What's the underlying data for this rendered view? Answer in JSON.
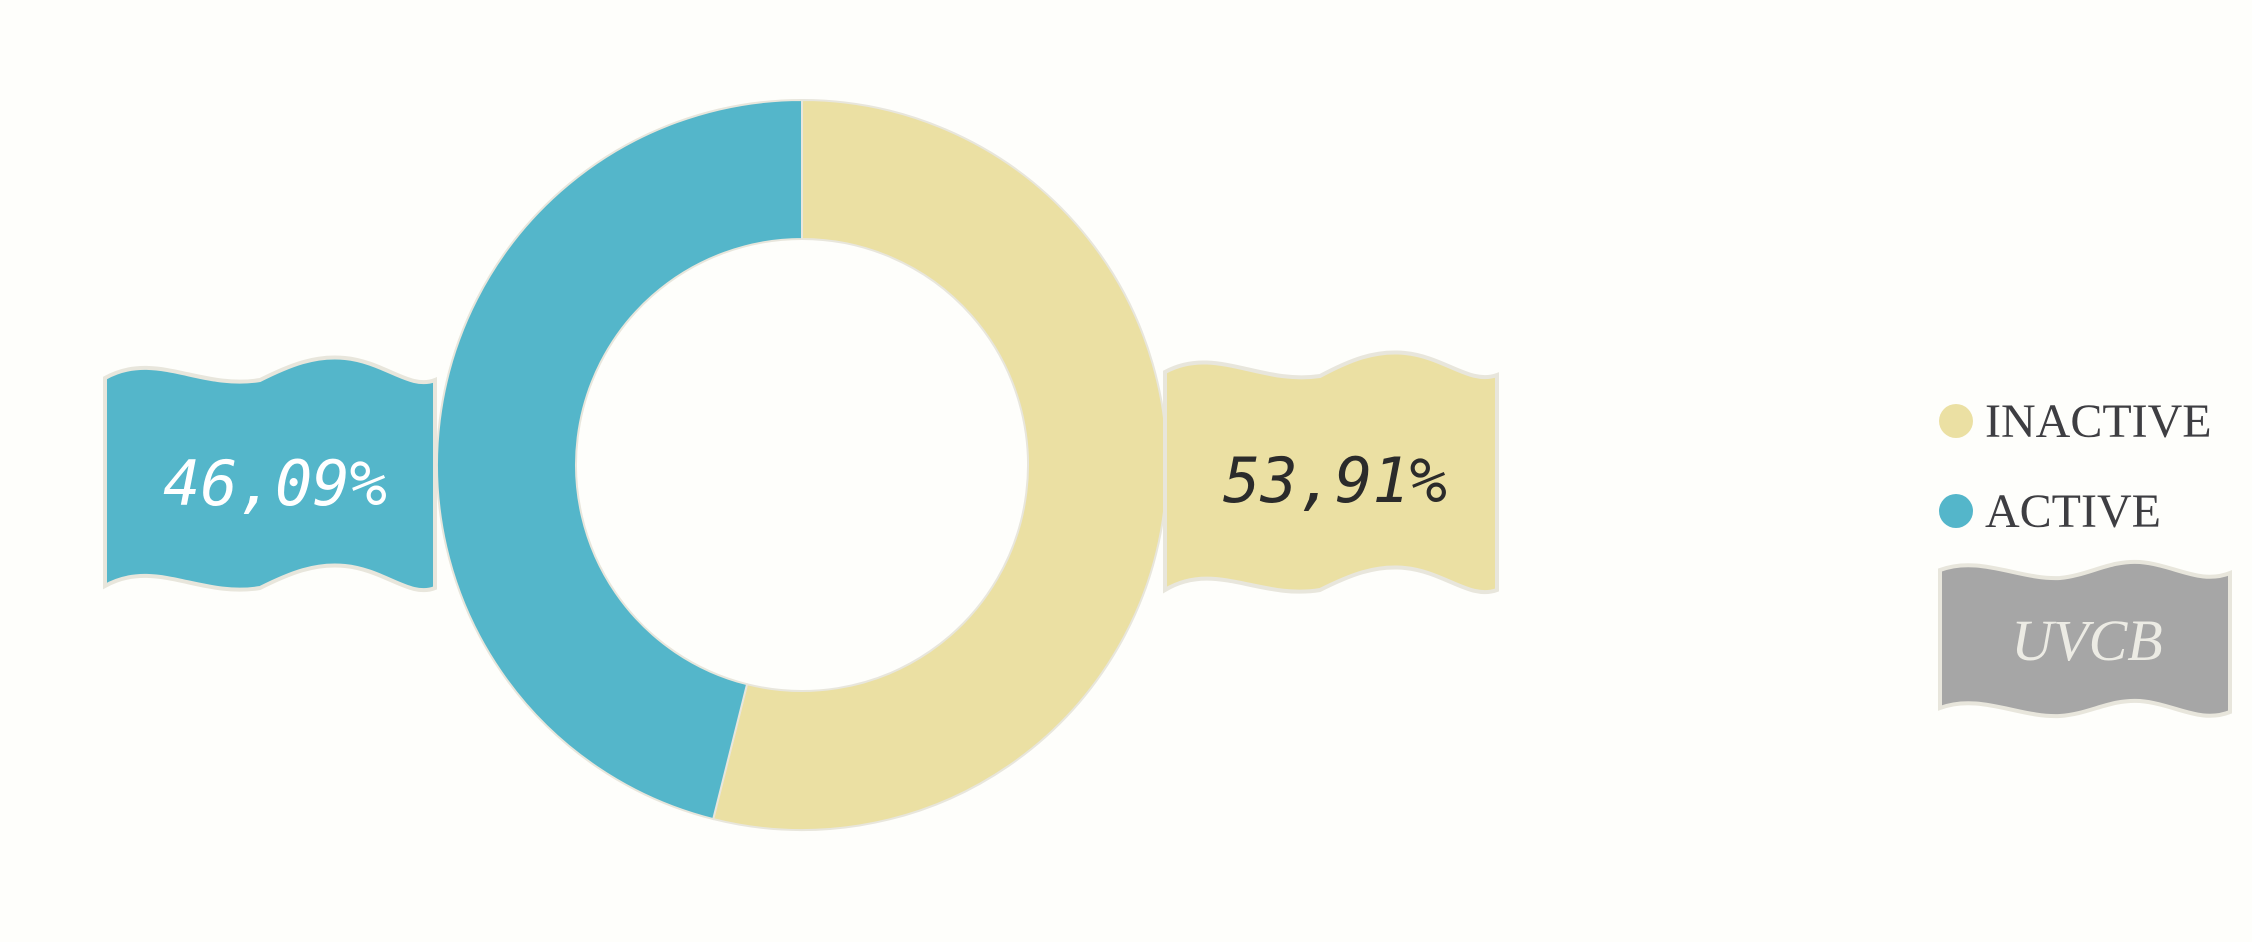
{
  "chart_data": {
    "type": "pie",
    "series": [
      {
        "name": "INACTIVE",
        "value": 53.91,
        "label": "53,91%",
        "color": "#ebe0a3"
      },
      {
        "name": "ACTIVE",
        "value": 46.09,
        "label": "46,09%",
        "color": "#54b6ca"
      }
    ],
    "legend": {
      "position": "right",
      "items": [
        "INACTIVE",
        "ACTIVE"
      ],
      "flag_label": "UVCB",
      "flag_color": "#a6a6a6"
    },
    "style": {
      "background": "#fefefb",
      "border": "#e8e6dc",
      "label_text_active": "#ffffff",
      "label_text_inactive": "#2b2b2b"
    }
  }
}
